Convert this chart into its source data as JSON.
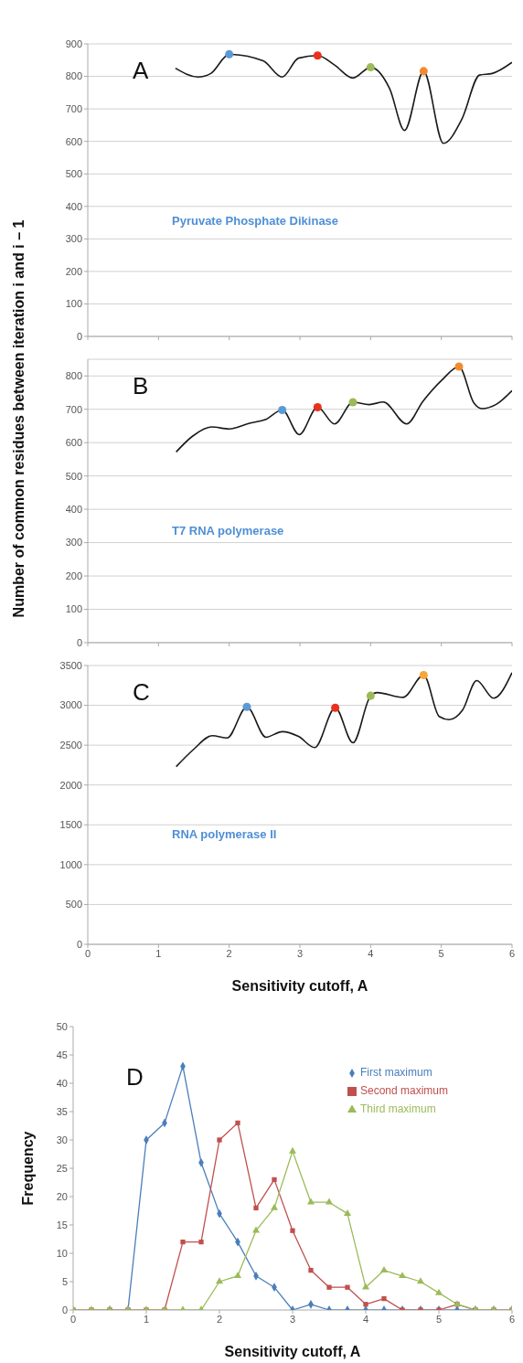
{
  "chart_data": [
    {
      "type": "line",
      "annotations": [
        "A",
        "Pyruvate Phosphate Dikinase"
      ],
      "xlim": [
        0,
        6
      ],
      "xticks": [
        0,
        1,
        2,
        3,
        4,
        5,
        6
      ],
      "ylim": [
        0,
        900
      ],
      "yticks": [
        0,
        100,
        200,
        300,
        400,
        500,
        600,
        700,
        800,
        900
      ],
      "grid": "y",
      "tick_labels": "y",
      "series": [
        {
          "color": "#1a1a1a",
          "marker": "none",
          "x": [
            1.24,
            1.56,
            1.74,
            2,
            2.48,
            2.75,
            2.98,
            3.25,
            3.49,
            3.75,
            4,
            4.27,
            4.48,
            4.75,
            5.03,
            5.29,
            5.54,
            5.72,
            6
          ],
          "values": [
            825,
            798,
            809,
            868,
            848,
            798,
            856,
            864,
            835,
            795,
            828,
            762,
            634,
            816,
            594,
            668,
            804,
            809,
            843
          ]
        },
        {
          "type": "scatter",
          "marker": "circle",
          "x": [
            2,
            3.25,
            4,
            4.75
          ],
          "values": [
            868,
            864,
            828,
            816
          ],
          "colors": [
            "#5b9bd5",
            "#e8321e",
            "#9bbb59",
            "#f28b30"
          ]
        }
      ]
    },
    {
      "type": "line",
      "ylabel": "Number of common residues between iteration i and i – 1",
      "annotations": [
        "B",
        "T7 RNA polymerase"
      ],
      "xlim": [
        0,
        6
      ],
      "xticks": [
        0,
        1,
        2,
        3,
        4,
        5,
        6
      ],
      "ylim": [
        0,
        850
      ],
      "yticks": [
        0,
        100,
        200,
        300,
        400,
        500,
        600,
        700,
        800
      ],
      "grid": "y",
      "tick_labels": "y",
      "series": [
        {
          "color": "#1a1a1a",
          "marker": "none",
          "x": [
            1.25,
            1.48,
            1.75,
            2,
            2.3,
            2.51,
            2.75,
            2.99,
            3.25,
            3.49,
            3.75,
            3.98,
            4.18,
            4.51,
            4.74,
            5.01,
            5.25,
            5.46,
            5.57,
            5.77,
            6
          ],
          "values": [
            572,
            619,
            647,
            641,
            659,
            669,
            698,
            624,
            706,
            656,
            721,
            714,
            722,
            656,
            724,
            788,
            828,
            719,
            702,
            714,
            756
          ]
        },
        {
          "type": "scatter",
          "marker": "circle",
          "x": [
            2.75,
            3.25,
            3.75,
            5.25
          ],
          "values": [
            698,
            706,
            721,
            828
          ],
          "colors": [
            "#5b9bd5",
            "#e8321e",
            "#9bbb59",
            "#f28b30"
          ]
        }
      ]
    },
    {
      "type": "line",
      "xlabel": "Sensitivity cutoff, A",
      "annotations": [
        "C",
        "RNA polymerase II"
      ],
      "xlim": [
        0,
        6
      ],
      "xticks": [
        0,
        1,
        2,
        3,
        4,
        5,
        6
      ],
      "ylim": [
        0,
        3500
      ],
      "yticks": [
        0,
        500,
        1000,
        1500,
        2000,
        2500,
        3000,
        3500
      ],
      "grid": "y",
      "series": [
        {
          "color": "#1a1a1a",
          "marker": "none",
          "x": [
            1.25,
            1.5,
            1.76,
            1.97,
            2.25,
            2.52,
            2.75,
            2.98,
            3.21,
            3.5,
            3.75,
            4,
            4.09,
            4.46,
            4.75,
            4.97,
            5.11,
            5.3,
            5.5,
            5.74,
            6
          ],
          "values": [
            2230,
            2450,
            2620,
            2590,
            2980,
            2600,
            2670,
            2610,
            2470,
            2970,
            2530,
            3120,
            3160,
            3100,
            3380,
            2860,
            2820,
            2940,
            3310,
            3090,
            3410
          ]
        },
        {
          "type": "scatter",
          "marker": "circle",
          "x": [
            2.25,
            3.5,
            4,
            4.75
          ],
          "values": [
            2980,
            2970,
            3120,
            3380
          ],
          "colors": [
            "#5b9bd5",
            "#e8321e",
            "#9bbb59",
            "#f8a53a"
          ]
        }
      ]
    },
    {
      "type": "line",
      "xlabel": "Sensitivity cutoff, A",
      "ylabel": "Frequency",
      "annotations": [
        "D"
      ],
      "xlim": [
        0,
        6
      ],
      "xticks": [
        0,
        1,
        2,
        3,
        4,
        5,
        6
      ],
      "ylim": [
        0,
        50
      ],
      "yticks": [
        0,
        5,
        10,
        15,
        20,
        25,
        30,
        35,
        40,
        45,
        50
      ],
      "legend": "top right",
      "x": [
        0,
        0.25,
        0.5,
        0.75,
        1,
        1.25,
        1.5,
        1.75,
        2,
        2.25,
        2.5,
        2.75,
        3,
        3.25,
        3.5,
        3.75,
        4,
        4.25,
        4.5,
        4.75,
        5,
        5.25,
        5.5,
        5.75,
        6
      ],
      "series": [
        {
          "name": "First maximum",
          "color": "#4a7ebb",
          "marker": "diamond",
          "values": [
            null,
            null,
            0,
            0,
            30,
            33,
            43,
            26,
            17,
            12,
            6,
            4,
            0,
            1,
            0,
            0,
            0,
            0,
            0,
            0,
            0,
            0,
            0,
            0,
            0
          ]
        },
        {
          "name": "Second maximum",
          "color": "#c0504d",
          "marker": "square",
          "values": [
            0,
            0,
            0,
            0,
            0,
            0,
            12,
            12,
            30,
            33,
            18,
            23,
            14,
            7,
            4,
            4,
            1,
            2,
            0,
            0,
            0,
            1,
            0,
            0,
            0
          ]
        },
        {
          "name": "Third maximum",
          "color": "#9bbb59",
          "marker": "triangle",
          "values": [
            0,
            0,
            0,
            0,
            0,
            0,
            0,
            0,
            5,
            6,
            14,
            18,
            28,
            19,
            19,
            17,
            4,
            7,
            6,
            5,
            3,
            1,
            0,
            0,
            0
          ]
        }
      ]
    }
  ]
}
